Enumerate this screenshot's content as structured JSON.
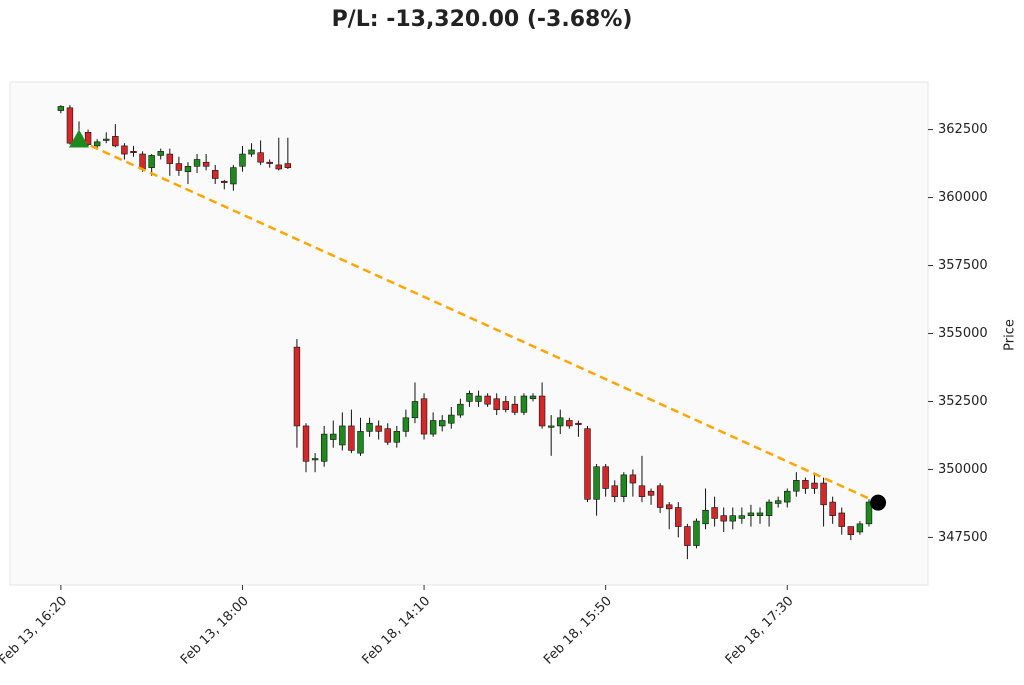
{
  "chart_data": {
    "type": "candlestick",
    "title": "P/L: -13,320.00 (-3.68%)",
    "ylabel": "Price",
    "up_color": "#1e8a1e",
    "down_color": "#d62728",
    "trade_color": "#ffa500",
    "xlim": [
      -5.6,
      95.5
    ],
    "xticks": [
      {
        "value": 0,
        "label": "Feb 13, 16:20"
      },
      {
        "value": 20,
        "label": "Feb 13, 18:00"
      },
      {
        "value": 40,
        "label": "Feb 18, 14:10"
      },
      {
        "value": 60,
        "label": "Feb 18, 15:50"
      },
      {
        "value": 80,
        "label": "Feb 18, 17:30"
      }
    ],
    "ylim": [
      345750,
      364250
    ],
    "yticks": [
      347500,
      350000,
      352500,
      355000,
      357500,
      360000,
      362500
    ],
    "x": [
      0,
      1,
      2,
      3,
      4,
      5,
      6,
      7,
      8,
      9,
      10,
      11,
      12,
      13,
      14,
      15,
      16,
      17,
      18,
      19,
      20,
      21,
      22,
      23,
      24,
      25,
      26,
      27,
      28,
      29,
      30,
      31,
      32,
      33,
      34,
      35,
      36,
      37,
      38,
      39,
      40,
      41,
      42,
      43,
      44,
      45,
      46,
      47,
      48,
      49,
      50,
      51,
      52,
      53,
      54,
      55,
      56,
      57,
      58,
      59,
      60,
      61,
      62,
      63,
      64,
      65,
      66,
      67,
      68,
      69,
      70,
      71,
      72,
      73,
      74,
      75,
      76,
      77,
      78,
      79,
      80,
      81,
      82,
      83,
      84,
      85,
      86,
      87,
      88,
      89
    ],
    "open": [
      363200,
      363300,
      362200,
      362400,
      361900,
      362100,
      362250,
      361900,
      361700,
      361600,
      361100,
      361550,
      361600,
      361250,
      360950,
      361150,
      361300,
      361000,
      360600,
      360500,
      361150,
      361600,
      361650,
      361300,
      361200,
      361250,
      354500,
      351600,
      350350,
      350300,
      351100,
      350900,
      351600,
      350600,
      351400,
      351600,
      351500,
      351000,
      351400,
      351900,
      352600,
      351300,
      351600,
      351700,
      352000,
      352500,
      352500,
      352700,
      352600,
      352500,
      352400,
      352100,
      352600,
      352700,
      351550,
      351600,
      351800,
      351700,
      351500,
      348900,
      350100,
      349400,
      349000,
      349800,
      349400,
      349200,
      349400,
      348700,
      348600,
      347900,
      347200,
      348000,
      348600,
      348300,
      348100,
      348200,
      348300,
      348300,
      348300,
      348750,
      348800,
      349200,
      349600,
      349500,
      349500,
      348800,
      348400,
      347900,
      347700,
      348000
    ],
    "high": [
      363400,
      363400,
      362800,
      362500,
      362150,
      362400,
      362700,
      362000,
      361900,
      361700,
      361600,
      361800,
      361800,
      361500,
      361300,
      361600,
      361600,
      361200,
      360650,
      361200,
      361900,
      362000,
      362100,
      361400,
      362200,
      362200,
      354800,
      351700,
      350600,
      351600,
      351800,
      352100,
      352200,
      351900,
      351900,
      351800,
      351700,
      351600,
      352200,
      353200,
      352800,
      352100,
      352000,
      352300,
      352600,
      352900,
      352900,
      352800,
      352800,
      352700,
      352700,
      352800,
      352800,
      353200,
      352000,
      352200,
      351900,
      351800,
      351600,
      350200,
      350200,
      349600,
      349900,
      350000,
      350500,
      349300,
      349500,
      348800,
      348800,
      348000,
      348200,
      349300,
      349000,
      348600,
      348600,
      348600,
      348700,
      348600,
      348900,
      349000,
      349300,
      349900,
      349700,
      349800,
      349700,
      349000,
      348600,
      347900,
      348100,
      348900
    ],
    "low": [
      363100,
      361950,
      362100,
      361900,
      361800,
      362000,
      361850,
      361400,
      361500,
      360950,
      360800,
      361400,
      360800,
      360800,
      360500,
      360900,
      361000,
      360500,
      360300,
      360250,
      360950,
      361500,
      361200,
      361100,
      361000,
      361050,
      350800,
      349900,
      349900,
      350100,
      350800,
      350700,
      350600,
      350500,
      351200,
      351100,
      350900,
      350800,
      351200,
      351700,
      351100,
      351200,
      351400,
      351500,
      351900,
      352300,
      352300,
      352300,
      352000,
      352100,
      352000,
      352000,
      352500,
      351500,
      350500,
      351300,
      351500,
      351200,
      348800,
      348300,
      349000,
      348800,
      348800,
      349000,
      348800,
      348700,
      348400,
      347800,
      347500,
      346700,
      347100,
      347800,
      347900,
      347700,
      347800,
      348000,
      347900,
      348000,
      347900,
      348600,
      348600,
      349000,
      349100,
      349100,
      347900,
      348000,
      347600,
      347400,
      347600,
      347900
    ],
    "close": [
      363350,
      362000,
      362300,
      361950,
      362050,
      362150,
      361900,
      361600,
      361650,
      361050,
      361550,
      361700,
      361250,
      361000,
      361150,
      361400,
      361150,
      360700,
      360550,
      361100,
      361600,
      361750,
      361300,
      361250,
      361050,
      361100,
      351600,
      350300,
      350400,
      351300,
      351300,
      351600,
      350700,
      351400,
      351700,
      351400,
      351000,
      351400,
      351900,
      352500,
      351300,
      351800,
      351800,
      352000,
      352400,
      352800,
      352700,
      352400,
      352200,
      352200,
      352100,
      352700,
      352700,
      351600,
      351600,
      351900,
      351600,
      351650,
      348900,
      350100,
      349300,
      349000,
      349800,
      349500,
      349000,
      349050,
      348600,
      348550,
      347900,
      347200,
      348100,
      348500,
      348200,
      348100,
      348300,
      348300,
      348400,
      348400,
      348800,
      348850,
      349200,
      349600,
      349300,
      349300,
      348700,
      348300,
      347900,
      347600,
      348000,
      348800
    ],
    "entry": {
      "x": 2,
      "y": 362100
    },
    "exit": {
      "x": 90,
      "y": 348780
    }
  }
}
